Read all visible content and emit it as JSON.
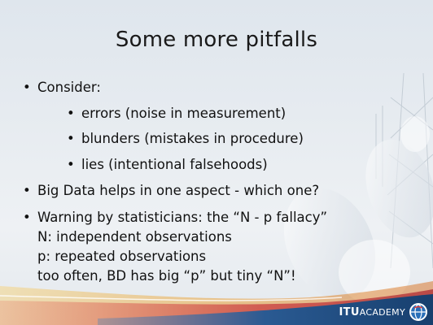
{
  "slide": {
    "title": "Some more pitfalls",
    "items": [
      {
        "text": "Consider:",
        "level": 1,
        "bullet": true
      },
      {
        "text": "errors (noise in measurement)",
        "level": 2,
        "bullet": true
      },
      {
        "text": "blunders (mistakes in procedure)",
        "level": 2,
        "bullet": true
      },
      {
        "text": "lies (intentional falsehoods)",
        "level": 2,
        "bullet": true
      },
      {
        "text": "Big Data helps in one aspect - which one?",
        "level": 1,
        "bullet": true
      },
      {
        "text": "Warning by statisticians: the “N - p fallacy”",
        "level": 1,
        "bullet": true
      },
      {
        "text": "N: independent observations",
        "level": 1,
        "bullet": false
      },
      {
        "text": "p: repeated observations",
        "level": 1,
        "bullet": false
      },
      {
        "text": "too often, BD has big “p” but tiny “N”!",
        "level": 1,
        "bullet": false
      }
    ]
  },
  "footer": {
    "brand_itu": "ITU",
    "brand_academy": "ACADEMY",
    "logo_icon": "itu-globe-icon"
  },
  "colors": {
    "text": "#111111",
    "band_orange": "#e8a23a",
    "band_red": "#c8323a",
    "band_blue": "#1f4f86"
  }
}
